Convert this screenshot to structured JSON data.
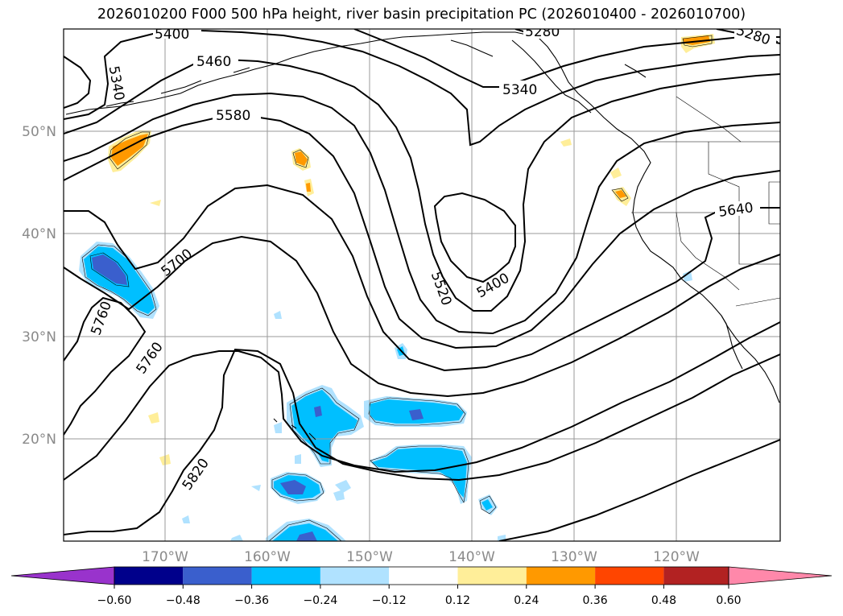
{
  "title": "2026010200 F000 500 hPa height, river basin precipitation PC (2026010400 - 2026010700)",
  "map": {
    "lat_labels": [
      "50°N",
      "40°N",
      "30°N",
      "20°N"
    ],
    "lon_labels": [
      "170°W",
      "160°W",
      "150°W",
      "140°W",
      "130°W",
      "120°W"
    ],
    "contour_labels": [
      "5400",
      "5460",
      "5280",
      "5280",
      "5340",
      "5340",
      "5580",
      "5700",
      "5640",
      "5400",
      "5520",
      "5760",
      "5760",
      "5820"
    ]
  },
  "colorbar": {
    "ticks": [
      "−0.60",
      "−0.48",
      "−0.36",
      "−0.24",
      "−0.12",
      "0.12",
      "0.24",
      "0.36",
      "0.48",
      "0.60"
    ],
    "colors": {
      "under": "#9933cc",
      "bins": [
        "#00008b",
        "#3a5fcd",
        "#00bfff",
        "#b0e2ff",
        "#ffffff",
        "#ffee99",
        "#ff9900",
        "#ff4500",
        "#b22222"
      ],
      "over": "#ff88aa"
    }
  }
}
